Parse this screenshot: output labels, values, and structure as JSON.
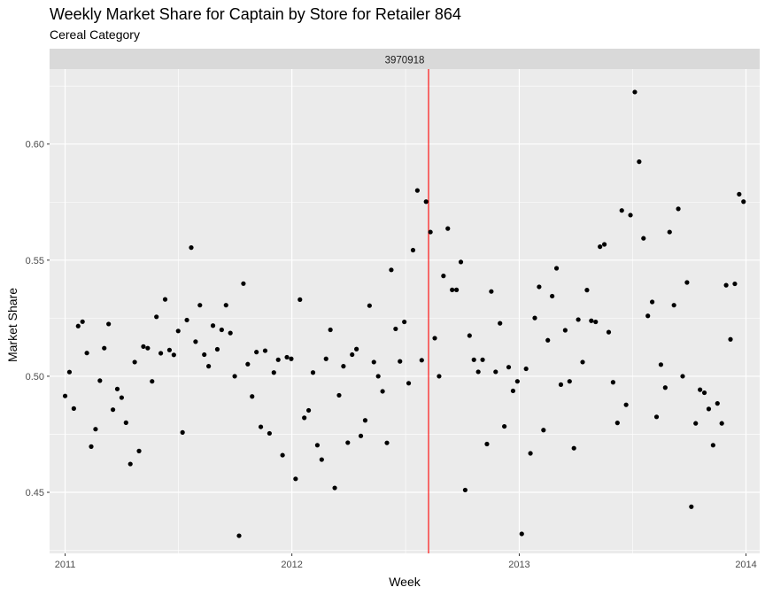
{
  "chart_data": {
    "type": "scatter",
    "title": "Weekly Market Share for Captain by Store for Retailer 864",
    "subtitle": "Cereal Category",
    "facet_label": "3970918",
    "xlabel": "Week",
    "ylabel": "Market Share",
    "x_ticks": [
      "2011",
      "2012",
      "2013",
      "2014"
    ],
    "y_ticks": [
      "0.45",
      "0.50",
      "0.55",
      "0.60"
    ],
    "x_range": [
      "2010-12-07",
      "2014-01-23"
    ],
    "ylim": [
      0.4237,
      0.6323
    ],
    "grid": true,
    "vline": {
      "date": "2012-08-08",
      "color": "#ff0000"
    },
    "point_color": "#000000",
    "background_color": "#ebebeb",
    "strip_color": "#d9d9d9",
    "points": [
      [
        "2011-01-01",
        0.4915
      ],
      [
        "2011-01-08",
        0.5018
      ],
      [
        "2011-01-15",
        0.4861
      ],
      [
        "2011-01-22",
        0.5216
      ],
      [
        "2011-01-29",
        0.5235
      ],
      [
        "2011-02-05",
        0.51
      ],
      [
        "2011-02-12",
        0.4697
      ],
      [
        "2011-02-19",
        0.4772
      ],
      [
        "2011-02-26",
        0.4981
      ],
      [
        "2011-03-05",
        0.5121
      ],
      [
        "2011-03-12",
        0.5225
      ],
      [
        "2011-03-19",
        0.4856
      ],
      [
        "2011-03-26",
        0.4945
      ],
      [
        "2011-04-02",
        0.4908
      ],
      [
        "2011-04-09",
        0.48
      ],
      [
        "2011-04-16",
        0.4622
      ],
      [
        "2011-04-23",
        0.5061
      ],
      [
        "2011-04-30",
        0.4678
      ],
      [
        "2011-05-07",
        0.5128
      ],
      [
        "2011-05-14",
        0.5121
      ],
      [
        "2011-05-21",
        0.4978
      ],
      [
        "2011-05-28",
        0.5256
      ],
      [
        "2011-06-04",
        0.5099
      ],
      [
        "2011-06-11",
        0.5331
      ],
      [
        "2011-06-18",
        0.5113
      ],
      [
        "2011-06-25",
        0.5092
      ],
      [
        "2011-07-02",
        0.5195
      ],
      [
        "2011-07-09",
        0.4758
      ],
      [
        "2011-07-16",
        0.5242
      ],
      [
        "2011-07-23",
        0.5554
      ],
      [
        "2011-07-30",
        0.5149
      ],
      [
        "2011-08-06",
        0.5306
      ],
      [
        "2011-08-13",
        0.5093
      ],
      [
        "2011-08-20",
        0.5043
      ],
      [
        "2011-08-27",
        0.5218
      ],
      [
        "2011-09-03",
        0.5116
      ],
      [
        "2011-09-10",
        0.52
      ],
      [
        "2011-09-17",
        0.5306
      ],
      [
        "2011-09-24",
        0.5186
      ],
      [
        "2011-10-01",
        0.5
      ],
      [
        "2011-10-08",
        0.4313
      ],
      [
        "2011-10-15",
        0.5399
      ],
      [
        "2011-10-22",
        0.5052
      ],
      [
        "2011-10-29",
        0.4913
      ],
      [
        "2011-11-05",
        0.5104
      ],
      [
        "2011-11-12",
        0.4782
      ],
      [
        "2011-11-19",
        0.511
      ],
      [
        "2011-11-26",
        0.4754
      ],
      [
        "2011-12-03",
        0.5016
      ],
      [
        "2011-12-10",
        0.5071
      ],
      [
        "2011-12-17",
        0.466
      ],
      [
        "2011-12-24",
        0.5082
      ],
      [
        "2011-12-31",
        0.5075
      ],
      [
        "2012-01-07",
        0.4558
      ],
      [
        "2012-01-14",
        0.533
      ],
      [
        "2012-01-21",
        0.4821
      ],
      [
        "2012-01-28",
        0.4853
      ],
      [
        "2012-02-04",
        0.5016
      ],
      [
        "2012-02-11",
        0.4703
      ],
      [
        "2012-02-18",
        0.4641
      ],
      [
        "2012-02-25",
        0.5075
      ],
      [
        "2012-03-03",
        0.52
      ],
      [
        "2012-03-10",
        0.4519
      ],
      [
        "2012-03-17",
        0.4918
      ],
      [
        "2012-03-24",
        0.5043
      ],
      [
        "2012-03-31",
        0.4714
      ],
      [
        "2012-04-07",
        0.5093
      ],
      [
        "2012-04-14",
        0.5117
      ],
      [
        "2012-04-21",
        0.4743
      ],
      [
        "2012-04-28",
        0.481
      ],
      [
        "2012-05-05",
        0.5304
      ],
      [
        "2012-05-12",
        0.5061
      ],
      [
        "2012-05-19",
        0.5
      ],
      [
        "2012-05-26",
        0.4935
      ],
      [
        "2012-06-02",
        0.4713
      ],
      [
        "2012-06-09",
        0.5458
      ],
      [
        "2012-06-16",
        0.5204
      ],
      [
        "2012-06-23",
        0.5064
      ],
      [
        "2012-06-30",
        0.5234
      ],
      [
        "2012-07-07",
        0.497
      ],
      [
        "2012-07-14",
        0.5543
      ],
      [
        "2012-07-21",
        0.58
      ],
      [
        "2012-07-28",
        0.5069
      ],
      [
        "2012-08-04",
        0.5752
      ],
      [
        "2012-08-11",
        0.5621
      ],
      [
        "2012-08-18",
        0.5164
      ],
      [
        "2012-08-25",
        0.5
      ],
      [
        "2012-09-01",
        0.5432
      ],
      [
        "2012-09-08",
        0.5636
      ],
      [
        "2012-09-15",
        0.5372
      ],
      [
        "2012-09-22",
        0.5372
      ],
      [
        "2012-09-29",
        0.5492
      ],
      [
        "2012-10-06",
        0.451
      ],
      [
        "2012-10-13",
        0.5175
      ],
      [
        "2012-10-20",
        0.5071
      ],
      [
        "2012-10-27",
        0.5019
      ],
      [
        "2012-11-03",
        0.5071
      ],
      [
        "2012-11-10",
        0.4708
      ],
      [
        "2012-11-17",
        0.5365
      ],
      [
        "2012-11-24",
        0.5019
      ],
      [
        "2012-12-01",
        0.5228
      ],
      [
        "2012-12-08",
        0.4784
      ],
      [
        "2012-12-15",
        0.5039
      ],
      [
        "2012-12-22",
        0.4937
      ],
      [
        "2012-12-29",
        0.4978
      ],
      [
        "2013-01-05",
        0.4321
      ],
      [
        "2013-01-12",
        0.5032
      ],
      [
        "2013-01-19",
        0.4668
      ],
      [
        "2013-01-26",
        0.5251
      ],
      [
        "2013-02-02",
        0.5385
      ],
      [
        "2013-02-09",
        0.4768
      ],
      [
        "2013-02-16",
        0.5155
      ],
      [
        "2013-02-23",
        0.5345
      ],
      [
        "2013-03-02",
        0.5465
      ],
      [
        "2013-03-09",
        0.4964
      ],
      [
        "2013-03-16",
        0.5198
      ],
      [
        "2013-03-23",
        0.4978
      ],
      [
        "2013-03-30",
        0.469
      ],
      [
        "2013-04-06",
        0.5244
      ],
      [
        "2013-04-13",
        0.5061
      ],
      [
        "2013-04-20",
        0.5371
      ],
      [
        "2013-04-27",
        0.5239
      ],
      [
        "2013-05-04",
        0.5234
      ],
      [
        "2013-05-11",
        0.5558
      ],
      [
        "2013-05-18",
        0.5568
      ],
      [
        "2013-05-25",
        0.519
      ],
      [
        "2013-06-01",
        0.4974
      ],
      [
        "2013-06-08",
        0.4799
      ],
      [
        "2013-06-15",
        0.5714
      ],
      [
        "2013-06-22",
        0.4877
      ],
      [
        "2013-06-29",
        0.5694
      ],
      [
        "2013-07-06",
        0.6224
      ],
      [
        "2013-07-13",
        0.5924
      ],
      [
        "2013-07-20",
        0.5594
      ],
      [
        "2013-07-27",
        0.526
      ],
      [
        "2013-08-03",
        0.532
      ],
      [
        "2013-08-10",
        0.4825
      ],
      [
        "2013-08-17",
        0.505
      ],
      [
        "2013-08-24",
        0.4951
      ],
      [
        "2013-08-31",
        0.5621
      ],
      [
        "2013-09-07",
        0.5306
      ],
      [
        "2013-09-14",
        0.5721
      ],
      [
        "2013-09-21",
        0.5
      ],
      [
        "2013-09-28",
        0.5404
      ],
      [
        "2013-10-05",
        0.4438
      ],
      [
        "2013-10-12",
        0.4797
      ],
      [
        "2013-10-19",
        0.4942
      ],
      [
        "2013-10-26",
        0.4929
      ],
      [
        "2013-11-02",
        0.4859
      ],
      [
        "2013-11-09",
        0.4703
      ],
      [
        "2013-11-16",
        0.4883
      ],
      [
        "2013-11-23",
        0.4797
      ],
      [
        "2013-11-30",
        0.5392
      ],
      [
        "2013-12-07",
        0.5159
      ],
      [
        "2013-12-14",
        0.5398
      ],
      [
        "2013-12-21",
        0.5784
      ],
      [
        "2013-12-28",
        0.5752
      ]
    ]
  }
}
